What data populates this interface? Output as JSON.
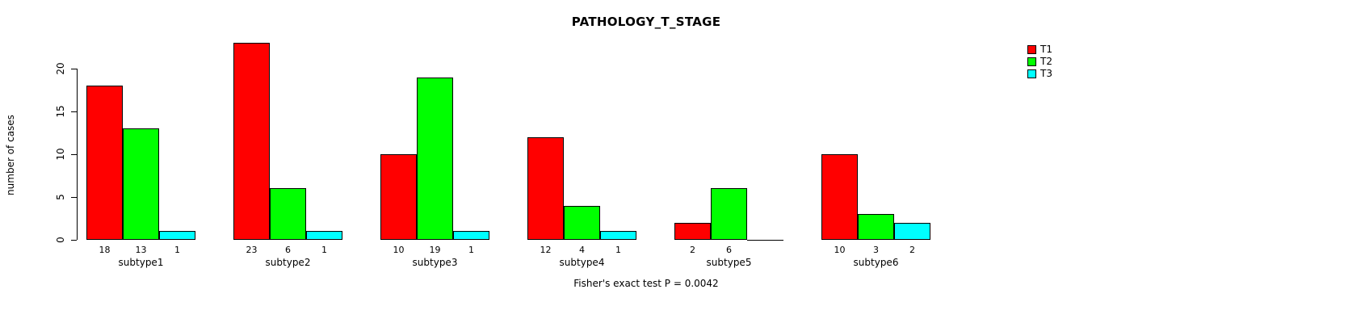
{
  "chart_data": {
    "type": "bar",
    "title": "PATHOLOGY_T_STAGE",
    "ylabel": "number of cases",
    "xlabel": "",
    "categories": [
      "subtype1",
      "subtype2",
      "subtype3",
      "subtype4",
      "subtype5",
      "subtype6"
    ],
    "series": [
      {
        "name": "T1",
        "color": "#FF0000",
        "values": [
          18,
          23,
          10,
          12,
          2,
          10
        ]
      },
      {
        "name": "T2",
        "color": "#00FF00",
        "values": [
          13,
          6,
          19,
          4,
          6,
          3
        ]
      },
      {
        "name": "T3",
        "color": "#00FFFF",
        "values": [
          1,
          1,
          1,
          1,
          0,
          2
        ]
      }
    ],
    "yticks": [
      0,
      5,
      10,
      15,
      20
    ],
    "ylim": [
      0,
      23
    ],
    "grid": false,
    "legend_position": "top-right",
    "show_value_labels": true,
    "annotation": "Fisher's exact test P = 0.0042",
    "colors": {
      "T1": "#FF0000",
      "T2": "#00FF00",
      "T3": "#00FFFF",
      "axis": "#000000",
      "background": "#FFFFFF"
    }
  }
}
